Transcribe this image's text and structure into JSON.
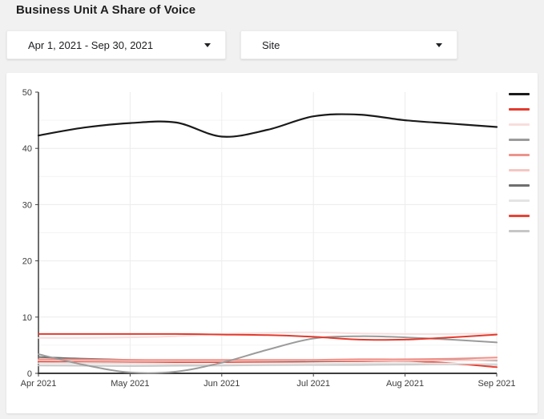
{
  "page": {
    "title": "Business Unit A Share of Voice"
  },
  "filters": {
    "date_range": {
      "value": "Apr 1, 2021 - Sep 30, 2021",
      "icon": "caret-down"
    },
    "site": {
      "value": "Site",
      "icon": "caret-down"
    }
  },
  "colors": {
    "background": "#f1f1f1",
    "card": "#ffffff",
    "axis": "#3d3d3d",
    "tick_label": "#3c3c3c",
    "grid_major": "#ececec",
    "grid_minor": "#f4f4f4"
  },
  "chart_data": {
    "type": "line",
    "title": "Business Unit A Share of Voice",
    "x_unit": "months since Apr 2021",
    "x": [
      0,
      0.5,
      1,
      1.5,
      2,
      2.5,
      3,
      3.5,
      4,
      4.5,
      5
    ],
    "x_tick_labels": [
      "Apr 2021",
      "May 2021",
      "Jun 2021",
      "Jul 2021",
      "Aug 2021",
      "Sep 2021"
    ],
    "y_ticks": [
      0,
      10,
      20,
      30,
      40,
      50
    ],
    "ylim": [
      0,
      50
    ],
    "xlabel": "",
    "ylabel": "",
    "grid": {
      "horizontal_step": 5,
      "vertical_at_months": true
    },
    "legend_position": "right",
    "legend_labels_visible": false,
    "series": [
      {
        "name": "series-1-black",
        "color": "#1a1a1a",
        "width": 2.2,
        "values": [
          42.3,
          43.7,
          44.5,
          44.6,
          42.1,
          43.3,
          45.7,
          46.0,
          45.0,
          44.4,
          43.8
        ]
      },
      {
        "name": "series-2-red",
        "color": "#e23b2e",
        "width": 2,
        "values": [
          7.0,
          7.0,
          7.0,
          7.0,
          6.9,
          6.8,
          6.5,
          6.0,
          6.0,
          6.4,
          6.9
        ]
      },
      {
        "name": "series-3-pale-pink",
        "color": "#f8dedd",
        "width": 2,
        "values": [
          6.3,
          6.3,
          6.4,
          6.6,
          7.0,
          7.2,
          7.3,
          7.1,
          7.0,
          7.0,
          7.1
        ]
      },
      {
        "name": "series-4-gray",
        "color": "#9b9b9b",
        "width": 2,
        "values": [
          3.4,
          1.5,
          0.15,
          0.3,
          1.9,
          4.2,
          6.2,
          6.6,
          6.4,
          6.0,
          5.5
        ]
      },
      {
        "name": "series-5-salmon",
        "color": "#ee938b",
        "width": 2,
        "values": [
          2.5,
          2.45,
          2.4,
          2.4,
          2.4,
          2.4,
          2.4,
          2.5,
          2.5,
          2.6,
          2.8
        ]
      },
      {
        "name": "series-6-pink",
        "color": "#f6c7c3",
        "width": 2,
        "values": [
          2.3,
          2.25,
          2.2,
          2.2,
          2.2,
          2.25,
          2.3,
          2.3,
          2.25,
          2.3,
          2.4
        ]
      },
      {
        "name": "series-7-dark-gray",
        "color": "#6f6f6f",
        "width": 2,
        "values": [
          2.9,
          2.6,
          2.4,
          2.3,
          2.25,
          2.2,
          2.2,
          2.3,
          2.4,
          2.4,
          2.3
        ]
      },
      {
        "name": "series-8-light-gray",
        "color": "#e4e4e4",
        "width": 2,
        "values": [
          1.8,
          1.75,
          1.7,
          1.65,
          1.6,
          1.65,
          1.7,
          1.75,
          1.8,
          1.75,
          1.7
        ]
      },
      {
        "name": "series-9-red-orange",
        "color": "#e84335",
        "width": 2,
        "values": [
          2.1,
          2.1,
          2.05,
          2.0,
          2.0,
          2.05,
          2.1,
          2.15,
          2.2,
          1.8,
          1.1
        ]
      },
      {
        "name": "series-10-silver",
        "color": "#c6c6c6",
        "width": 2,
        "values": [
          1.4,
          1.35,
          1.3,
          1.35,
          1.4,
          1.45,
          1.5,
          1.5,
          1.55,
          1.6,
          1.5
        ]
      }
    ]
  }
}
